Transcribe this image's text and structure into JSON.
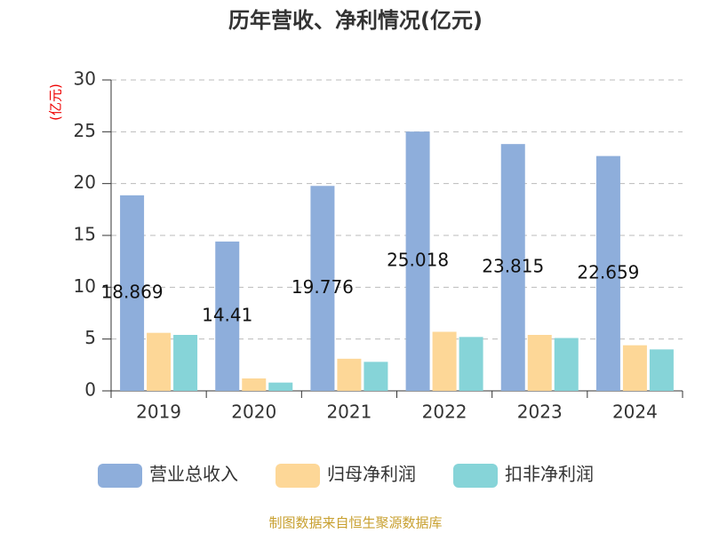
{
  "chart_data": {
    "type": "bar",
    "title": "历年营收、净利情况(亿元)",
    "y_axis_label": "(亿元)",
    "source": "制图数据来自恒生聚源数据库",
    "categories": [
      "2019",
      "2020",
      "2021",
      "2022",
      "2023",
      "2024"
    ],
    "series": [
      {
        "name": "营业总收入",
        "color": "#8eaedb",
        "values": [
          18.869,
          14.41,
          19.776,
          25.018,
          23.815,
          22.659
        ],
        "show_labels": true
      },
      {
        "name": "归母净利润",
        "color": "#fdd797",
        "values": [
          5.6,
          1.2,
          3.1,
          5.7,
          5.4,
          4.4
        ]
      },
      {
        "name": "扣非净利润",
        "color": "#86d4d8",
        "values": [
          5.4,
          0.8,
          2.8,
          5.2,
          5.1,
          4.0
        ]
      }
    ],
    "ylim": [
      0,
      30
    ],
    "yticks": [
      0,
      5,
      10,
      15,
      20,
      25,
      30
    ],
    "grid": true,
    "legend": "bottom"
  }
}
